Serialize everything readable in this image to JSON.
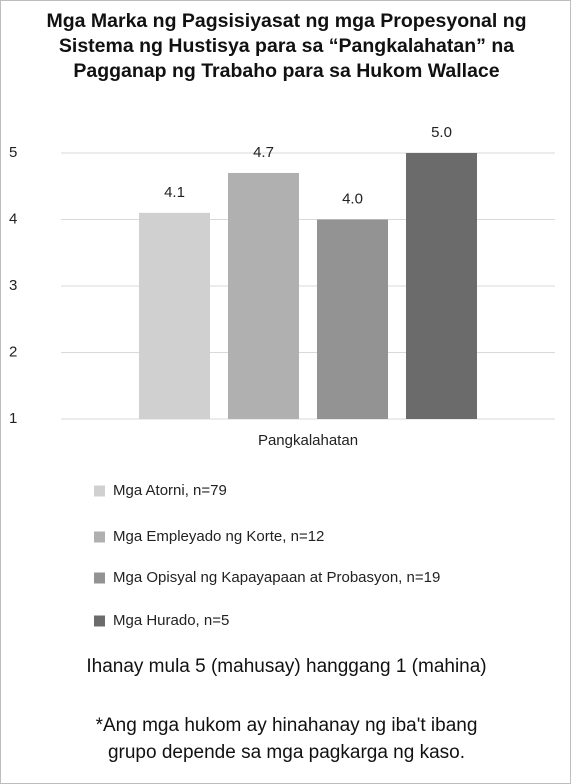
{
  "chart_data": {
    "type": "bar",
    "title": "Mga Marka ng Pagsisiyasat ng mga Propesyonal ng Sistema ng Hustisya para sa “Pangkalahatan” na Pagganap ng Trabaho para sa Hukom Wallace",
    "categories": [
      "Pangkalahatan"
    ],
    "series": [
      {
        "name": "Mga Atorni, n=79",
        "color": "#d0d0d0",
        "values": [
          4.1
        ],
        "value_labels": [
          "4.1"
        ]
      },
      {
        "name": "Mga Empleyado ng Korte, n=12",
        "color": "#b0b0b0",
        "values": [
          4.7
        ],
        "value_labels": [
          "4.7"
        ]
      },
      {
        "name": "Mga Opisyal ng Kapayapaan at Probasyon, n=19",
        "color": "#939393",
        "values": [
          4.0
        ],
        "value_labels": [
          "4.0"
        ]
      },
      {
        "name": "Mga Hurado, n=5",
        "color": "#6b6b6b",
        "values": [
          5.0
        ],
        "value_labels": [
          "5.0"
        ]
      }
    ],
    "ylim": [
      1,
      5
    ],
    "yticks": [
      1,
      2,
      3,
      4,
      5
    ],
    "grid": true,
    "annotations": [
      "Ihanay mula 5 (mahusay) hanggang 1 (mahina)",
      "*Ang mga hukom ay hinahanay ng iba't ibang grupo depende sa mga pagkarga ng kaso."
    ]
  }
}
